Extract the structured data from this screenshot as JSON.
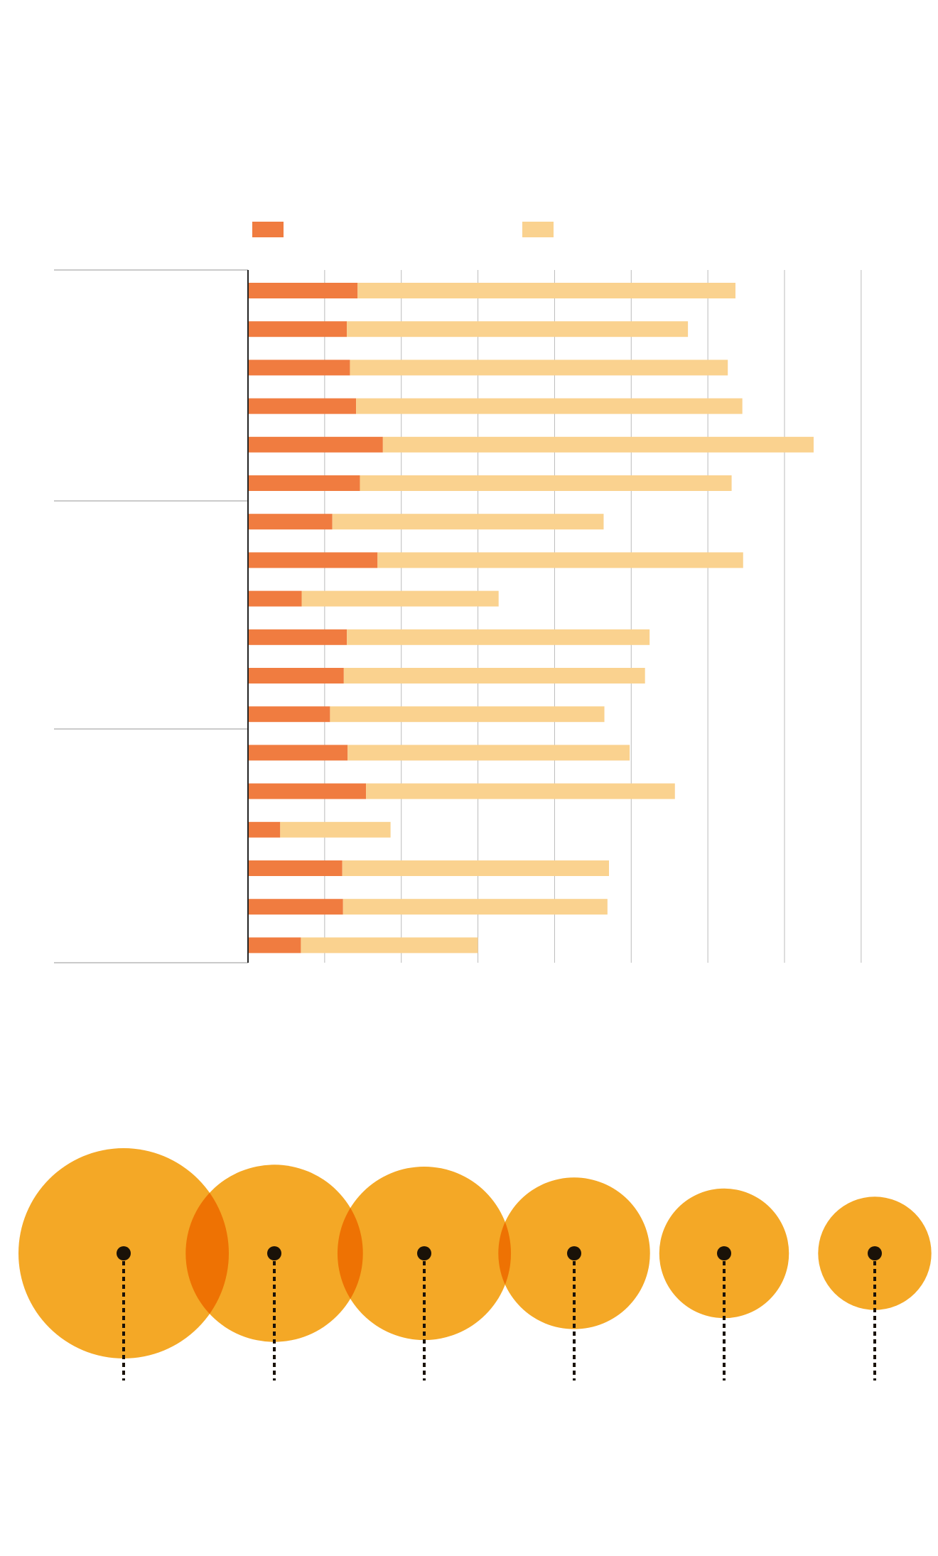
{
  "colors": {
    "primary_bar": "#f07c40",
    "secondary_bar": "#fad28f",
    "gridline": "#bbbbbb",
    "axis": "#222222",
    "bubble": "#f4a826",
    "bubble_overlap": "#ee7203",
    "marker": "#1a1208"
  },
  "chart_data": [
    {
      "type": "bar",
      "orientation": "horizontal",
      "stacked": true,
      "title": "",
      "xlabel": "",
      "ylabel": "",
      "grid": true,
      "legend": "top",
      "categories": [
        "",
        "",
        "",
        "",
        "",
        "",
        "",
        "",
        "",
        "",
        "",
        "",
        "",
        "",
        "",
        "",
        "",
        ""
      ],
      "groups": [
        {
          "label": "",
          "size": 6
        },
        {
          "label": "",
          "size": 6
        },
        {
          "label": "",
          "size": 6
        }
      ],
      "xlim": [
        0,
        8.4
      ],
      "series": [
        {
          "name": "",
          "values": [
            1.43,
            1.29,
            1.33,
            1.41,
            1.76,
            1.46,
            1.1,
            1.69,
            0.7,
            1.29,
            1.25,
            1.07,
            1.3,
            1.54,
            0.42,
            1.23,
            1.24,
            0.69
          ]
        },
        {
          "name": "",
          "values": [
            4.93,
            4.45,
            4.93,
            5.04,
            5.62,
            4.85,
            3.54,
            4.77,
            2.57,
            3.95,
            3.93,
            3.58,
            3.68,
            4.03,
            1.44,
            3.48,
            3.45,
            2.31
          ]
        }
      ]
    },
    {
      "type": "bubble",
      "title": "",
      "xlabel": "",
      "ylabel": "",
      "categories": [
        "",
        "",
        "",
        "",
        "",
        ""
      ],
      "values": [
        100,
        71,
        68,
        52,
        38,
        29
      ]
    }
  ]
}
